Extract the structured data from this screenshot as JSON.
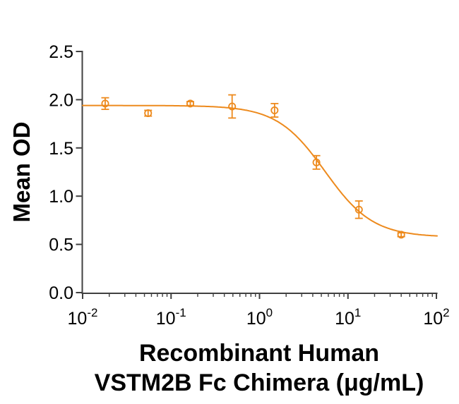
{
  "chart_data": {
    "type": "scatter",
    "subtype": "dose-response-neutralization-curve",
    "x_scale": "log",
    "x": [
      0.018,
      0.055,
      0.165,
      0.49,
      1.48,
      4.4,
      13.3,
      40
    ],
    "y": [
      1.96,
      1.86,
      1.96,
      1.93,
      1.89,
      1.35,
      0.86,
      0.6
    ],
    "y_err": [
      0.06,
      0.03,
      0.02,
      0.12,
      0.07,
      0.07,
      0.09,
      0.02
    ],
    "fit_curve": {
      "model": "4PL",
      "top": 1.94,
      "bottom": 0.575,
      "ec50": 5.5,
      "hill": 1.6
    },
    "title": "",
    "ylabel": "Mean OD",
    "xlabel_line1": "Recombinant Human",
    "xlabel_line2": "VSTM2B Fc Chimera (μg/mL)",
    "ylim": [
      0,
      2.5
    ],
    "xlim": [
      0.01,
      100
    ],
    "y_tick_labels": [
      "0.0",
      "0.5",
      "1.0",
      "1.5",
      "2.0",
      "2.5"
    ],
    "y_ticks": [
      0,
      0.5,
      1,
      1.5,
      2,
      2.5
    ],
    "x_tick_base": "10",
    "x_tick_exponents": [
      -2,
      -1,
      0,
      1,
      2
    ],
    "grid": false,
    "legend": "none",
    "marker": "open-circle",
    "colors": {
      "curve": "#ED8A1D",
      "axis": "#404040",
      "text": "#000000",
      "background": "#FFFFFF"
    }
  }
}
